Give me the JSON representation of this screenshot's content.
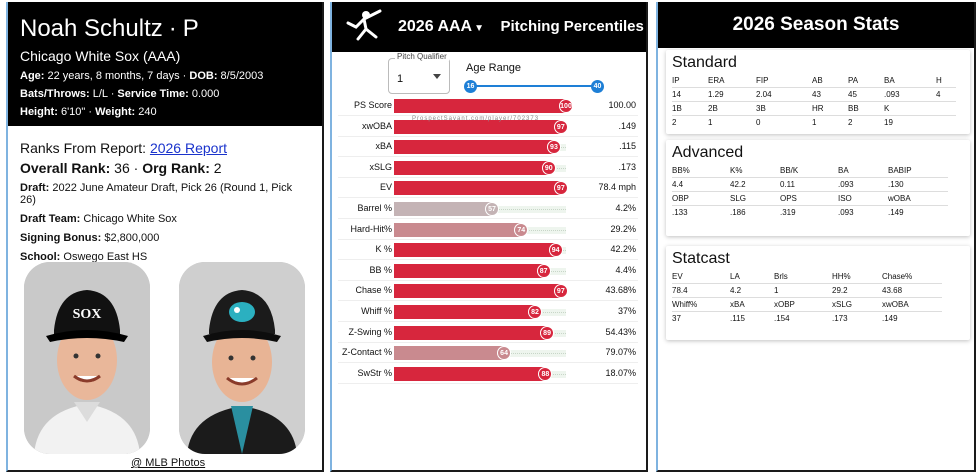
{
  "profile": {
    "name": "Noah Schultz",
    "position": "P",
    "team": "Chicago White Sox (AAA)",
    "age_label": "Age:",
    "age_value": "22 years, 8 months, 7 days",
    "dob_label": "DOB:",
    "dob_value": "8/5/2003",
    "bt_label": "Bats/Throws:",
    "bt_value": "L/L",
    "st_label": "Service Time:",
    "st_value": "0.000",
    "height_label": "Height:",
    "height_value": "6'10\"",
    "weight_label": "Weight:",
    "weight_value": "240",
    "ranks_prefix": "Ranks From Report:",
    "ranks_link": "2026 Report",
    "overall_label": "Overall Rank:",
    "overall_value": "36",
    "org_label": "Org Rank:",
    "org_value": "2",
    "draft_label": "Draft:",
    "draft_value": "2022 June Amateur Draft, Pick 26 (Round 1, Pick 26)",
    "draftteam_label": "Draft Team:",
    "draftteam_value": "Chicago White Sox",
    "bonus_label": "Signing Bonus:",
    "bonus_value": "$2,800,000",
    "school_label": "School:",
    "school_value": "Oswego East HS",
    "photo_credit": "@ MLB Photos"
  },
  "percentiles": {
    "season": "2026 AAA",
    "title": "Pitching Percentiles",
    "qualifier_label": "Pitch Qualifier",
    "qualifier_value": "1",
    "age_range_label": "Age Range",
    "age_min": "16",
    "age_max": "40",
    "watermark": "ProspectSavant.com/player/702373",
    "rows": [
      {
        "label": "PS Score",
        "pct": 100,
        "value": "100.00"
      },
      {
        "label": "xwOBA",
        "pct": 97,
        "value": ".149"
      },
      {
        "label": "xBA",
        "pct": 93,
        "value": ".115"
      },
      {
        "label": "xSLG",
        "pct": 90,
        "value": ".173"
      },
      {
        "label": "EV",
        "pct": 97,
        "value": "78.4 mph"
      },
      {
        "label": "Barrel %",
        "pct": 57,
        "value": "4.2%"
      },
      {
        "label": "Hard-Hit%",
        "pct": 74,
        "value": "29.2%"
      },
      {
        "label": "K %",
        "pct": 94,
        "value": "42.2%"
      },
      {
        "label": "BB %",
        "pct": 87,
        "value": "4.4%"
      },
      {
        "label": "Chase %",
        "pct": 97,
        "value": "43.68%"
      },
      {
        "label": "Whiff %",
        "pct": 82,
        "value": "37%"
      },
      {
        "label": "Z-Swing %",
        "pct": 89,
        "value": "54.43%"
      },
      {
        "label": "Z-Contact %",
        "pct": 64,
        "value": "79.07%"
      },
      {
        "label": "SwStr %",
        "pct": 88,
        "value": "18.07%"
      }
    ],
    "colors": {
      "high": "#d7263d",
      "mid": "#c98a8f",
      "low": "#c4b3b5"
    }
  },
  "season_stats": {
    "title": "2026 Season Stats",
    "standard": {
      "title": "Standard",
      "rows": [
        [
          "IP",
          "ERA",
          "FIP",
          "AB",
          "PA",
          "BA",
          "H"
        ],
        [
          "14",
          "1.29",
          "2.04",
          "43",
          "45",
          ".093",
          "4"
        ],
        [
          "1B",
          "2B",
          "3B",
          "HR",
          "BB",
          "K",
          ""
        ],
        [
          "2",
          "1",
          "0",
          "1",
          "2",
          "19",
          ""
        ]
      ]
    },
    "advanced": {
      "title": "Advanced",
      "rows": [
        [
          "BB%",
          "K%",
          "BB/K",
          "BA",
          "BABIP"
        ],
        [
          "4.4",
          "42.2",
          "0.11",
          ".093",
          ".130"
        ],
        [
          "OBP",
          "SLG",
          "OPS",
          "ISO",
          "wOBA"
        ],
        [
          ".133",
          ".186",
          ".319",
          ".093",
          ".149"
        ]
      ]
    },
    "statcast": {
      "title": "Statcast",
      "rows": [
        [
          "EV",
          "LA",
          "Brls",
          "HH%",
          "Chase%"
        ],
        [
          "78.4",
          "4.2",
          "1",
          "29.2",
          "43.68"
        ],
        [
          "Whiff%",
          "xBA",
          "xOBP",
          "xSLG",
          "xwOBA"
        ],
        [
          "37",
          ".115",
          ".154",
          ".173",
          ".149"
        ]
      ]
    }
  }
}
